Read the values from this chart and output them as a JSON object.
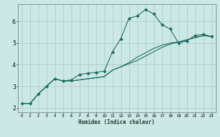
{
  "title": "",
  "xlabel": "Humidex (Indice chaleur)",
  "bg_color": "#cce8e4",
  "grid_color": "#aacccc",
  "line_color": "#1a6b60",
  "xlim": [
    -0.5,
    23.5
  ],
  "ylim": [
    1.8,
    6.8
  ],
  "xticks": [
    0,
    1,
    2,
    3,
    4,
    5,
    6,
    7,
    8,
    9,
    10,
    11,
    12,
    13,
    14,
    15,
    16,
    17,
    18,
    19,
    20,
    21,
    22,
    23
  ],
  "yticks": [
    2,
    3,
    4,
    5,
    6
  ],
  "series1_x": [
    0,
    1,
    2,
    3,
    4,
    5,
    6,
    7,
    8,
    9,
    10,
    11,
    12,
    13,
    14,
    15,
    16,
    17,
    18,
    19,
    20,
    21,
    22,
    23
  ],
  "series1_y": [
    2.2,
    2.2,
    2.65,
    3.0,
    3.35,
    3.25,
    3.3,
    3.55,
    3.6,
    3.65,
    3.7,
    4.6,
    5.2,
    6.15,
    6.25,
    6.55,
    6.35,
    5.85,
    5.65,
    5.0,
    5.1,
    5.35,
    5.4,
    5.3
  ],
  "series2_x": [
    0,
    1,
    2,
    3,
    4,
    5,
    6,
    7,
    8,
    9,
    10,
    11,
    12,
    13,
    14,
    15,
    16,
    17,
    18,
    19,
    20,
    21,
    22,
    23
  ],
  "series2_y": [
    2.2,
    2.2,
    2.65,
    3.0,
    3.35,
    3.25,
    3.25,
    3.3,
    3.35,
    3.4,
    3.45,
    3.75,
    3.9,
    4.05,
    4.2,
    4.4,
    4.6,
    4.8,
    4.95,
    5.05,
    5.15,
    5.25,
    5.35,
    5.3
  ],
  "series3_x": [
    0,
    1,
    2,
    3,
    4,
    5,
    6,
    7,
    8,
    9,
    10,
    11,
    12,
    13,
    14,
    15,
    16,
    17,
    18,
    19,
    20,
    21,
    22,
    23
  ],
  "series3_y": [
    2.2,
    2.2,
    2.65,
    3.0,
    3.35,
    3.25,
    3.25,
    3.3,
    3.35,
    3.4,
    3.45,
    3.75,
    3.9,
    4.1,
    4.35,
    4.55,
    4.75,
    4.9,
    5.0,
    5.05,
    5.15,
    5.25,
    5.35,
    5.3
  ]
}
